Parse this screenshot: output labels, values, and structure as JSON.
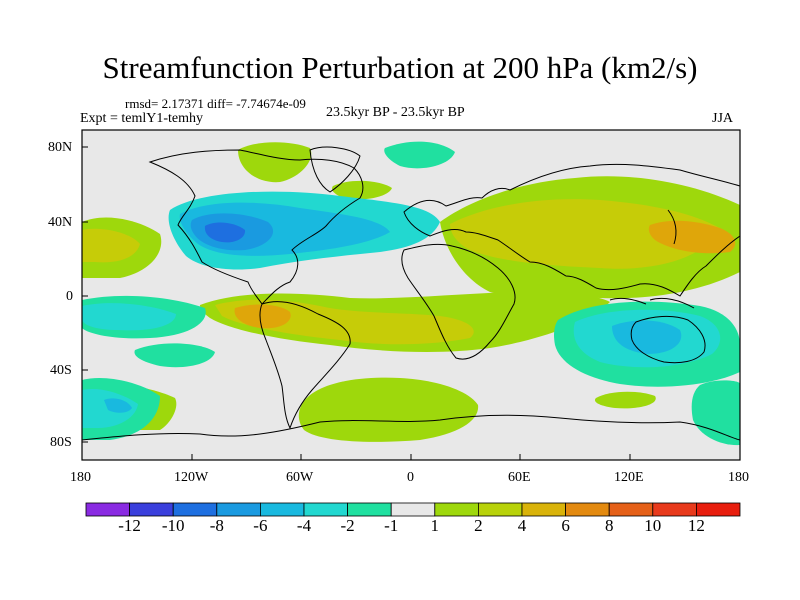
{
  "title": "Streamfunction Perturbation at 200 hPa (km2/s)",
  "stats_line": "rmsd= 2.17371 diff= -7.74674e-09",
  "experiment": "Expt = temlY1-temhy",
  "period": "23.5kyr BP - 23.5kyr BP",
  "season": "JJA",
  "lat_ticks": [
    "80N",
    "40N",
    "0",
    "40S",
    "80S"
  ],
  "lon_ticks": [
    "180",
    "120W",
    "60W",
    "0",
    "60E",
    "120E",
    "180"
  ],
  "colorbar": {
    "labels": [
      "-12",
      "-10",
      "-8",
      "-6",
      "-4",
      "-2",
      "-1",
      "1",
      "2",
      "4",
      "6",
      "8",
      "10",
      "12"
    ],
    "colors": [
      "#8a2be2",
      "#3a3fdc",
      "#1e6fe0",
      "#1a9ae0",
      "#19b9df",
      "#22d8d0",
      "#20e0a0",
      "#e8e8e8",
      "#9ed80c",
      "#b8d20a",
      "#d9b30a",
      "#e38a10",
      "#e56018",
      "#e83a1c",
      "#e81e0e"
    ]
  },
  "colors": {
    "neutral": "#e8e8e8",
    "pos2": "#9ed80c",
    "pos4": "#c6cc08",
    "pos6": "#dfa60a",
    "neg1": "#20e0a0",
    "neg2": "#22d8d0",
    "neg4": "#19b9df",
    "neg6": "#1a9ae0",
    "neg8": "#1e6fe0"
  }
}
